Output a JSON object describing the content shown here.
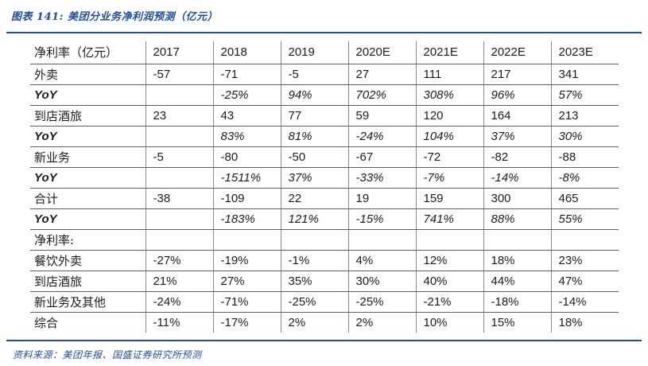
{
  "figure": {
    "title": "图表 141:  美团分业务净利润预测（亿元）",
    "source": "资料来源：美团年报、国盛证券研究所预测"
  },
  "colors": {
    "accent_blue": "#1F4E9F",
    "horizontal_border": "#5f5f5f",
    "vertical_border": "#8a8a8a"
  },
  "table": {
    "columns": [
      "净利率（亿元）",
      "2017",
      "2018",
      "2019",
      "2020E",
      "2021E",
      "2022E",
      "2023E"
    ],
    "rows": [
      {
        "label": "外卖",
        "yoy": false,
        "values": [
          "-57",
          "-71",
          "-5",
          "27",
          "111",
          "217",
          "341"
        ]
      },
      {
        "label": "YoY",
        "yoy": true,
        "values": [
          "",
          "-25%",
          "94%",
          "702%",
          "308%",
          "96%",
          "57%"
        ]
      },
      {
        "label": "到店酒旅",
        "yoy": false,
        "values": [
          "23",
          "43",
          "77",
          "59",
          "120",
          "164",
          "213"
        ]
      },
      {
        "label": "YoY",
        "yoy": true,
        "values": [
          "",
          "83%",
          "81%",
          "-24%",
          "104%",
          "37%",
          "30%"
        ]
      },
      {
        "label": "新业务",
        "yoy": false,
        "values": [
          "-5",
          "-80",
          "-50",
          "-67",
          "-72",
          "-82",
          "-88"
        ]
      },
      {
        "label": "YoY",
        "yoy": true,
        "values": [
          "",
          "-1511%",
          "37%",
          "-33%",
          "-7%",
          "-14%",
          "-8%"
        ]
      },
      {
        "label": "合计",
        "yoy": false,
        "values": [
          "-38",
          "-109",
          "22",
          "19",
          "159",
          "300",
          "465"
        ]
      },
      {
        "label": "YoY",
        "yoy": true,
        "values": [
          "",
          "-183%",
          "121%",
          "-15%",
          "741%",
          "88%",
          "55%"
        ]
      },
      {
        "label": "净利率:",
        "yoy": false,
        "values": [
          "",
          "",
          "",
          "",
          "",
          "",
          ""
        ]
      },
      {
        "label": "餐饮外卖",
        "yoy": false,
        "values": [
          "-27%",
          "-19%",
          "-1%",
          "4%",
          "12%",
          "18%",
          "23%"
        ]
      },
      {
        "label": "到店酒旅",
        "yoy": false,
        "values": [
          "21%",
          "27%",
          "35%",
          "30%",
          "40%",
          "44%",
          "47%"
        ]
      },
      {
        "label": "新业务及其他",
        "yoy": false,
        "values": [
          "-24%",
          "-71%",
          "-25%",
          "-25%",
          "-21%",
          "-18%",
          "-14%"
        ]
      },
      {
        "label": "综合",
        "yoy": false,
        "values": [
          "-11%",
          "-17%",
          "2%",
          "2%",
          "10%",
          "15%",
          "18%"
        ]
      }
    ]
  }
}
